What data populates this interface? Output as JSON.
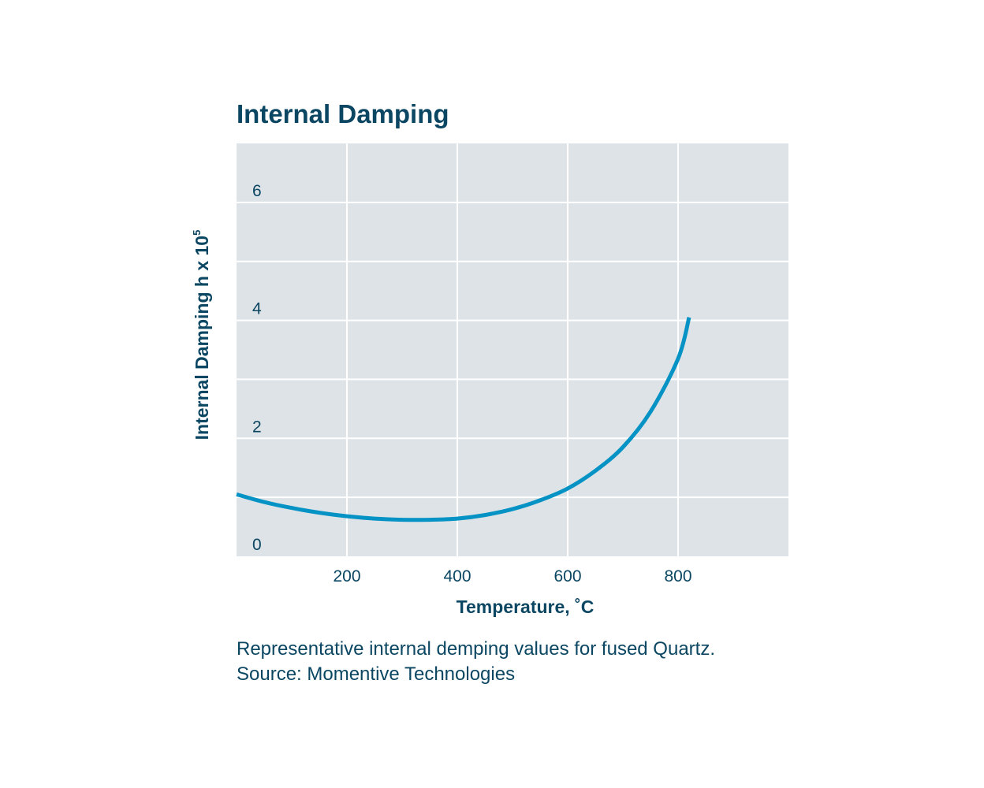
{
  "chart_data": {
    "type": "line",
    "title": "Internal Damping",
    "xlabel": "Temperature, ˚C",
    "ylabel": "Internal Damping h x 10",
    "ylabel_superscript": "5",
    "xlim": [
      0,
      1000
    ],
    "ylim": [
      0,
      7
    ],
    "xticks": [
      200,
      400,
      600,
      800
    ],
    "yticks": [
      0,
      2,
      4,
      6
    ],
    "grid": true,
    "colors": {
      "plot_background": "#dde3e6",
      "grid": "#ffffff",
      "line": "#0592c4",
      "text": "#0b4662"
    },
    "series": [
      {
        "x": [
          0,
          50,
          100,
          150,
          200,
          250,
          300,
          350,
          400,
          450,
          500,
          550,
          600,
          650,
          700,
          750,
          800,
          820
        ],
        "y": [
          1.05,
          0.92,
          0.82,
          0.74,
          0.68,
          0.64,
          0.62,
          0.62,
          0.64,
          0.7,
          0.8,
          0.95,
          1.15,
          1.45,
          1.85,
          2.45,
          3.35,
          4.05
        ]
      }
    ]
  },
  "caption": {
    "line1": "Representative internal demping values for fused Quartz.",
    "line2": "Source: Momentive Technologies"
  }
}
